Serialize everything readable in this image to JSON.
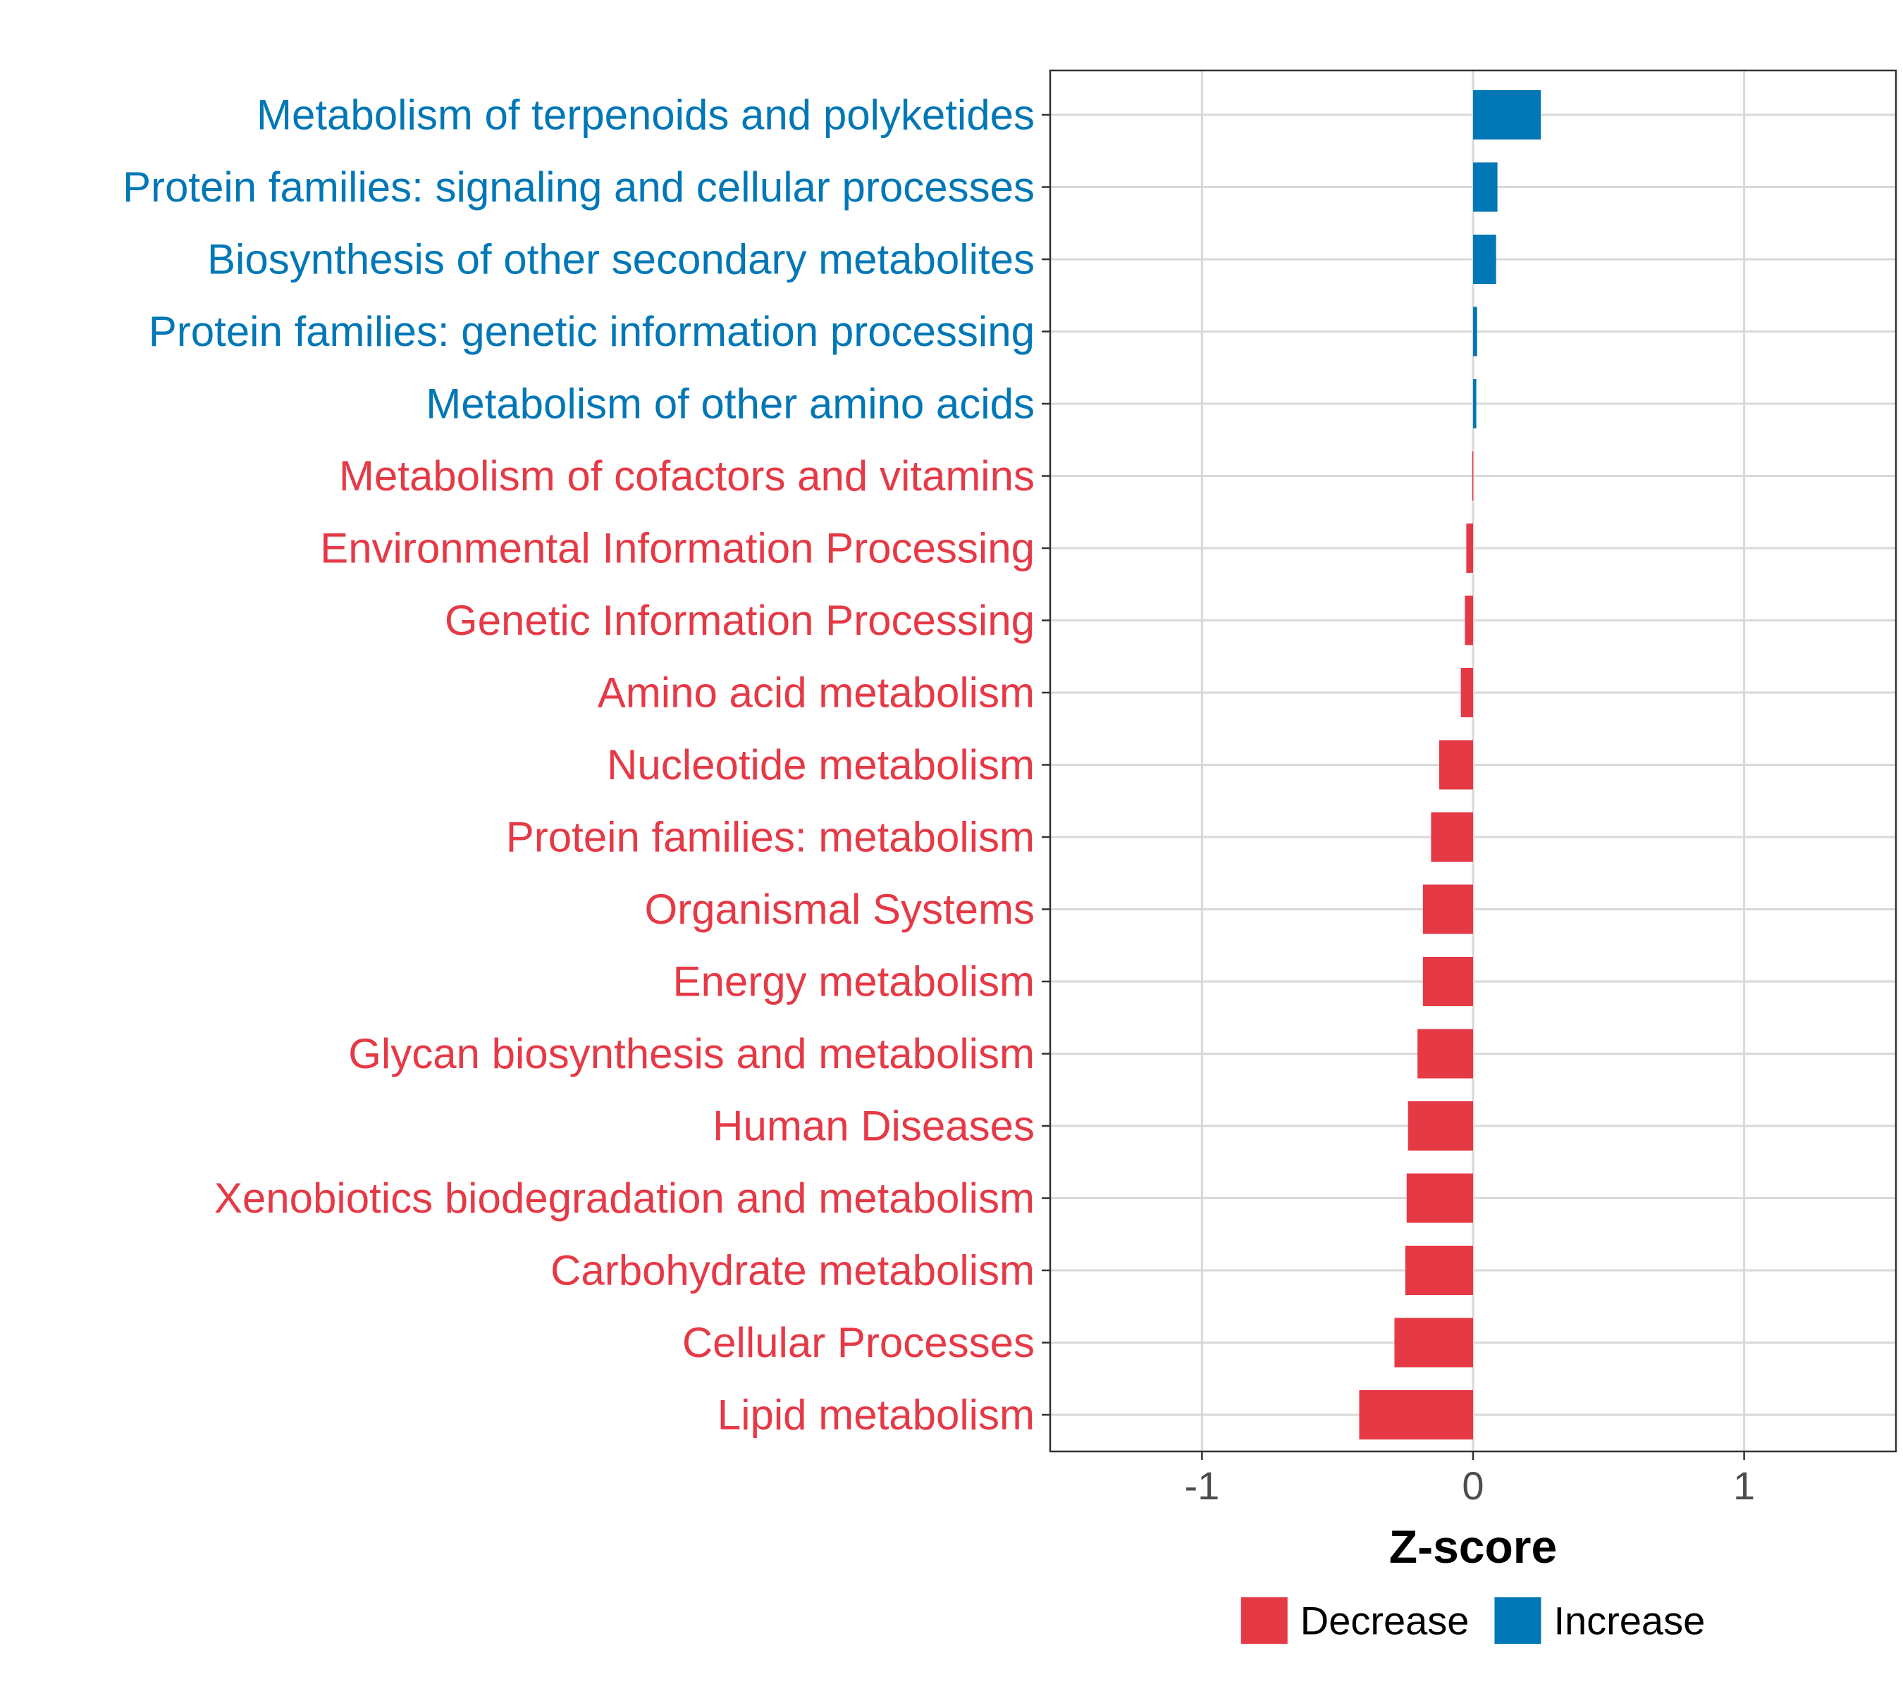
{
  "chart_data": {
    "type": "bar",
    "orientation": "horizontal",
    "title": "",
    "xlabel": "Z-score",
    "ylabel": "",
    "xlim": [
      -1.56,
      1.56
    ],
    "xticks": [
      -1,
      0,
      1
    ],
    "xtick_labels": [
      "-1",
      "0",
      "1"
    ],
    "grid": true,
    "legend_position": "bottom",
    "colors": {
      "Decrease": "#E63946",
      "Increase": "#0077B6",
      "grid": "#d9d9d9",
      "axis": "#333333"
    },
    "legend": [
      {
        "name": "Decrease",
        "color": "#E63946"
      },
      {
        "name": "Increase",
        "color": "#0077B6"
      }
    ],
    "categories": [
      "Metabolism of terpenoids and polyketides",
      "Protein families: signaling and cellular processes",
      "Biosynthesis of other secondary metabolites",
      "Protein families: genetic information processing",
      "Metabolism of other amino acids",
      "Metabolism of cofactors and vitamins",
      "Environmental Information Processing",
      "Genetic Information Processing",
      "Amino acid metabolism",
      "Nucleotide metabolism",
      "Protein families: metabolism",
      "Organismal Systems",
      "Energy metabolism",
      "Glycan biosynthesis and metabolism",
      "Human Diseases",
      "Xenobiotics biodegradation and metabolism",
      "Carbohydrate metabolism",
      "Cellular Processes",
      "Lipid metabolism"
    ],
    "values": [
      0.25,
      0.09,
      0.085,
      0.015,
      0.012,
      -0.003,
      -0.025,
      -0.03,
      -0.045,
      -0.125,
      -0.155,
      -0.185,
      -0.185,
      -0.205,
      -0.24,
      -0.245,
      -0.25,
      -0.29,
      -0.42
    ],
    "direction": [
      "Increase",
      "Increase",
      "Increase",
      "Increase",
      "Increase",
      "Decrease",
      "Decrease",
      "Decrease",
      "Decrease",
      "Decrease",
      "Decrease",
      "Decrease",
      "Decrease",
      "Decrease",
      "Decrease",
      "Decrease",
      "Decrease",
      "Decrease",
      "Decrease"
    ]
  }
}
